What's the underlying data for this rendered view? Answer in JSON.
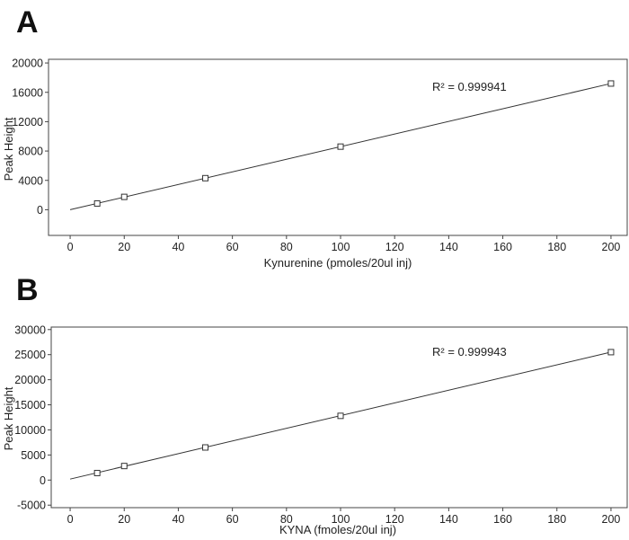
{
  "chart_data": [
    {
      "type": "scatter",
      "panel": "A",
      "xlabel": "Kynurenine (pmoles/20ul inj)",
      "ylabel": "Peak Height",
      "xlim": [
        -8,
        206
      ],
      "ylim": [
        -3500,
        20500
      ],
      "xticks": [
        0,
        20,
        40,
        60,
        80,
        100,
        120,
        140,
        160,
        180,
        200
      ],
      "yticks": [
        0,
        4000,
        8000,
        12000,
        16000,
        20000
      ],
      "annotation": "R² = 0.999941",
      "series": [
        {
          "x": [
            10,
            20,
            50,
            100,
            200
          ],
          "y": [
            850,
            1750,
            4300,
            8600,
            17200
          ]
        }
      ],
      "fit": {
        "x": [
          0,
          200
        ],
        "y": [
          0,
          17200
        ]
      },
      "grid": false,
      "legend": "none"
    },
    {
      "type": "scatter",
      "panel": "B",
      "xlabel": "KYNA (fmoles/20ul inj)",
      "ylabel": "Peak Height",
      "xlim": [
        -7,
        206
      ],
      "ylim": [
        -5500,
        30500
      ],
      "xticks": [
        0,
        20,
        40,
        60,
        80,
        100,
        120,
        140,
        160,
        180,
        200
      ],
      "yticks": [
        -5000,
        0,
        5000,
        10000,
        15000,
        20000,
        25000,
        30000
      ],
      "annotation": "R² = 0.999943",
      "series": [
        {
          "x": [
            10,
            20,
            50,
            100,
            200
          ],
          "y": [
            1400,
            2800,
            6500,
            12800,
            25500
          ]
        }
      ],
      "fit": {
        "x": [
          0,
          200
        ],
        "y": [
          200,
          25500
        ]
      },
      "grid": false,
      "legend": "none"
    }
  ]
}
